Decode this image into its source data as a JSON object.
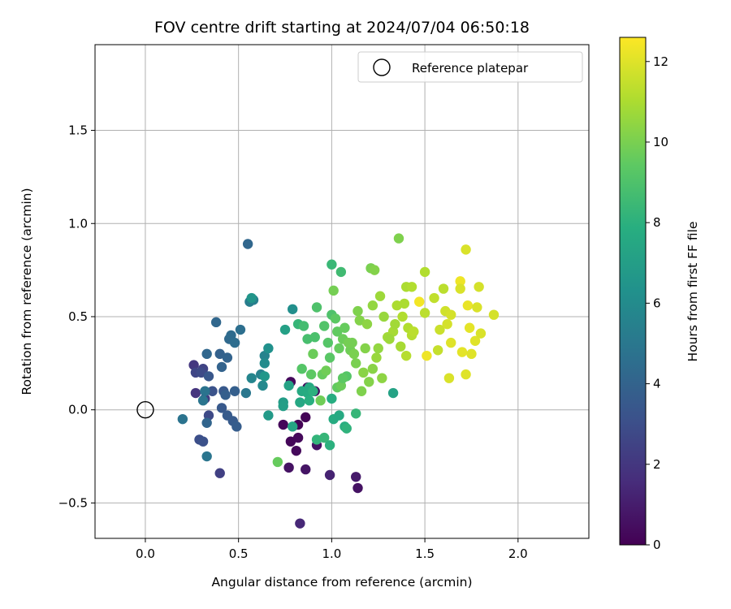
{
  "chart_data": {
    "type": "scatter",
    "title": "FOV centre drift starting at 2024/07/04 06:50:18",
    "xlabel": "Angular distance from reference (arcmin)",
    "ylabel": "Rotation from reference (arcmin)",
    "xlim": [
      -0.27,
      2.38
    ],
    "ylim": [
      -0.69,
      1.96
    ],
    "xticks": [
      0.0,
      0.5,
      1.0,
      1.5,
      2.0
    ],
    "xtick_labels": [
      "0.0",
      "0.5",
      "1.0",
      "1.5",
      "2.0"
    ],
    "yticks": [
      -0.5,
      0.0,
      0.5,
      1.0,
      1.5
    ],
    "ytick_labels": [
      "−0.5",
      "0.0",
      "0.5",
      "1.0",
      "1.5"
    ],
    "grid": true,
    "legend": {
      "placement": "top-right",
      "entries": [
        "Reference platepar"
      ]
    },
    "reference_point": {
      "x": 0.0,
      "y": 0.0,
      "label": "Reference platepar"
    },
    "colorbar": {
      "label": "Hours from first FF file",
      "range": [
        0,
        12.6
      ],
      "ticks": [
        0,
        2,
        4,
        6,
        8,
        10,
        12
      ],
      "tick_labels": [
        "0",
        "2",
        "4",
        "6",
        "8",
        "10",
        "12"
      ],
      "colormap": "viridis"
    },
    "color_variable": "hours",
    "points": [
      {
        "x": 0.74,
        "y": -0.08,
        "c": 0.2
      },
      {
        "x": 0.78,
        "y": -0.17,
        "c": 0.2
      },
      {
        "x": 0.82,
        "y": -0.08,
        "c": 0.1
      },
      {
        "x": 0.86,
        "y": -0.04,
        "c": 0.1
      },
      {
        "x": 0.81,
        "y": -0.22,
        "c": 0.3
      },
      {
        "x": 0.82,
        "y": -0.15,
        "c": 0.3
      },
      {
        "x": 0.78,
        "y": 0.15,
        "c": 0.3
      },
      {
        "x": 0.87,
        "y": 0.12,
        "c": 0.4
      },
      {
        "x": 0.91,
        "y": 0.1,
        "c": 0.5
      },
      {
        "x": 0.92,
        "y": -0.19,
        "c": 0.6
      },
      {
        "x": 0.77,
        "y": -0.31,
        "c": 0.6
      },
      {
        "x": 0.86,
        "y": -0.32,
        "c": 0.7
      },
      {
        "x": 1.14,
        "y": -0.42,
        "c": 0.6
      },
      {
        "x": 1.13,
        "y": -0.36,
        "c": 0.9
      },
      {
        "x": 0.99,
        "y": -0.35,
        "c": 1.2
      },
      {
        "x": 0.83,
        "y": -0.61,
        "c": 1.4
      },
      {
        "x": 0.27,
        "y": 0.09,
        "c": 1.9
      },
      {
        "x": 0.26,
        "y": 0.24,
        "c": 2.0
      },
      {
        "x": 0.32,
        "y": 0.06,
        "c": 2.2
      },
      {
        "x": 0.4,
        "y": -0.34,
        "c": 2.4
      },
      {
        "x": 0.31,
        "y": 0.22,
        "c": 2.5
      },
      {
        "x": 0.27,
        "y": 0.2,
        "c": 2.6
      },
      {
        "x": 0.3,
        "y": 0.2,
        "c": 2.8
      },
      {
        "x": 0.34,
        "y": -0.03,
        "c": 2.8
      },
      {
        "x": 0.29,
        "y": -0.16,
        "c": 3.0
      },
      {
        "x": 0.31,
        "y": -0.17,
        "c": 3.1
      },
      {
        "x": 0.36,
        "y": 0.1,
        "c": 3.2
      },
      {
        "x": 0.34,
        "y": 0.18,
        "c": 3.4
      },
      {
        "x": 0.42,
        "y": 0.1,
        "c": 3.5
      },
      {
        "x": 0.41,
        "y": 0.01,
        "c": 3.5
      },
      {
        "x": 0.44,
        "y": -0.03,
        "c": 3.6
      },
      {
        "x": 0.47,
        "y": -0.06,
        "c": 3.6
      },
      {
        "x": 0.49,
        "y": -0.09,
        "c": 3.7
      },
      {
        "x": 0.48,
        "y": 0.1,
        "c": 3.8
      },
      {
        "x": 0.43,
        "y": 0.08,
        "c": 3.8
      },
      {
        "x": 0.4,
        "y": 0.3,
        "c": 3.9
      },
      {
        "x": 0.44,
        "y": 0.28,
        "c": 4.0
      },
      {
        "x": 0.41,
        "y": 0.23,
        "c": 4.0
      },
      {
        "x": 0.33,
        "y": -0.07,
        "c": 4.1
      },
      {
        "x": 0.33,
        "y": 0.3,
        "c": 4.2
      },
      {
        "x": 0.38,
        "y": 0.47,
        "c": 4.2
      },
      {
        "x": 0.45,
        "y": 0.38,
        "c": 4.3
      },
      {
        "x": 0.46,
        "y": 0.4,
        "c": 4.4
      },
      {
        "x": 0.48,
        "y": 0.36,
        "c": 4.5
      },
      {
        "x": 0.51,
        "y": 0.43,
        "c": 4.6
      },
      {
        "x": 0.55,
        "y": 0.89,
        "c": 4.2
      },
      {
        "x": 0.2,
        "y": -0.05,
        "c": 4.8
      },
      {
        "x": 0.33,
        "y": -0.25,
        "c": 4.9
      },
      {
        "x": 0.32,
        "y": 0.1,
        "c": 4.8
      },
      {
        "x": 0.31,
        "y": 0.05,
        "c": 4.9
      },
      {
        "x": 0.54,
        "y": 0.09,
        "c": 5.0
      },
      {
        "x": 0.56,
        "y": 0.58,
        "c": 5.3
      },
      {
        "x": 0.58,
        "y": 0.59,
        "c": 5.4
      },
      {
        "x": 0.62,
        "y": 0.19,
        "c": 5.5
      },
      {
        "x": 0.64,
        "y": 0.29,
        "c": 5.6
      },
      {
        "x": 0.57,
        "y": 0.17,
        "c": 5.7
      },
      {
        "x": 0.63,
        "y": 0.13,
        "c": 5.9
      },
      {
        "x": 0.64,
        "y": 0.25,
        "c": 6.0
      },
      {
        "x": 0.66,
        "y": 0.33,
        "c": 6.3
      },
      {
        "x": 0.57,
        "y": 0.6,
        "c": 6.5
      },
      {
        "x": 0.79,
        "y": 0.54,
        "c": 6.2
      },
      {
        "x": 0.64,
        "y": 0.18,
        "c": 6.6
      },
      {
        "x": 0.66,
        "y": -0.03,
        "c": 6.8
      },
      {
        "x": 0.74,
        "y": 0.04,
        "c": 6.9
      },
      {
        "x": 0.74,
        "y": 0.02,
        "c": 7.0
      },
      {
        "x": 0.75,
        "y": 0.43,
        "c": 7.1
      },
      {
        "x": 0.77,
        "y": 0.13,
        "c": 7.2
      },
      {
        "x": 0.79,
        "y": -0.09,
        "c": 7.4
      },
      {
        "x": 0.83,
        "y": 0.04,
        "c": 7.5
      },
      {
        "x": 0.84,
        "y": 0.1,
        "c": 7.6
      },
      {
        "x": 0.87,
        "y": 0.09,
        "c": 7.7
      },
      {
        "x": 0.88,
        "y": 0.12,
        "c": 7.6
      },
      {
        "x": 0.88,
        "y": 0.05,
        "c": 7.9
      },
      {
        "x": 0.9,
        "y": 0.1,
        "c": 8.0
      },
      {
        "x": 0.92,
        "y": -0.16,
        "c": 8.2
      },
      {
        "x": 0.96,
        "y": -0.15,
        "c": 8.3
      },
      {
        "x": 0.99,
        "y": -0.19,
        "c": 8.0
      },
      {
        "x": 1.0,
        "y": 0.06,
        "c": 7.8
      },
      {
        "x": 1.01,
        "y": -0.05,
        "c": 7.7
      },
      {
        "x": 1.04,
        "y": -0.03,
        "c": 7.6
      },
      {
        "x": 1.07,
        "y": -0.09,
        "c": 7.9
      },
      {
        "x": 1.08,
        "y": -0.1,
        "c": 8.1
      },
      {
        "x": 1.13,
        "y": -0.02,
        "c": 8.3
      },
      {
        "x": 1.33,
        "y": 0.09,
        "c": 7.2
      },
      {
        "x": 1.0,
        "y": 0.78,
        "c": 8.4
      },
      {
        "x": 1.05,
        "y": 0.74,
        "c": 8.6
      },
      {
        "x": 0.82,
        "y": 0.46,
        "c": 8.3
      },
      {
        "x": 0.85,
        "y": 0.45,
        "c": 8.7
      },
      {
        "x": 0.87,
        "y": 0.38,
        "c": 8.8
      },
      {
        "x": 0.91,
        "y": 0.39,
        "c": 8.9
      },
      {
        "x": 0.92,
        "y": 0.55,
        "c": 9.0
      },
      {
        "x": 0.96,
        "y": 0.45,
        "c": 9.1
      },
      {
        "x": 0.98,
        "y": 0.36,
        "c": 9.2
      },
      {
        "x": 0.99,
        "y": 0.28,
        "c": 9.3
      },
      {
        "x": 1.0,
        "y": 0.51,
        "c": 9.0
      },
      {
        "x": 1.02,
        "y": 0.49,
        "c": 9.4
      },
      {
        "x": 1.03,
        "y": 0.42,
        "c": 9.5
      },
      {
        "x": 1.04,
        "y": 0.33,
        "c": 9.6
      },
      {
        "x": 1.06,
        "y": 0.38,
        "c": 9.7
      },
      {
        "x": 1.08,
        "y": 0.18,
        "c": 9.2
      },
      {
        "x": 1.1,
        "y": 0.32,
        "c": 9.8
      },
      {
        "x": 1.11,
        "y": 0.36,
        "c": 9.9
      },
      {
        "x": 1.13,
        "y": 0.25,
        "c": 10.0
      },
      {
        "x": 1.14,
        "y": 0.53,
        "c": 10.1
      },
      {
        "x": 1.15,
        "y": 0.48,
        "c": 10.2
      },
      {
        "x": 1.17,
        "y": 0.2,
        "c": 10.3
      },
      {
        "x": 1.19,
        "y": 0.46,
        "c": 10.4
      },
      {
        "x": 1.21,
        "y": 0.76,
        "c": 10.0
      },
      {
        "x": 1.23,
        "y": 0.75,
        "c": 10.2
      },
      {
        "x": 1.22,
        "y": 0.56,
        "c": 10.5
      },
      {
        "x": 1.24,
        "y": 0.28,
        "c": 10.6
      },
      {
        "x": 1.26,
        "y": 0.61,
        "c": 10.7
      },
      {
        "x": 1.27,
        "y": 0.17,
        "c": 10.4
      },
      {
        "x": 1.3,
        "y": 0.39,
        "c": 10.8
      },
      {
        "x": 1.33,
        "y": 0.42,
        "c": 10.9
      },
      {
        "x": 1.35,
        "y": 0.56,
        "c": 11.0
      },
      {
        "x": 1.36,
        "y": 0.92,
        "c": 10.1
      },
      {
        "x": 1.38,
        "y": 0.5,
        "c": 11.1
      },
      {
        "x": 1.4,
        "y": 0.66,
        "c": 11.0
      },
      {
        "x": 1.4,
        "y": 0.29,
        "c": 11.2
      },
      {
        "x": 1.43,
        "y": 0.66,
        "c": 11.1
      },
      {
        "x": 1.43,
        "y": 0.4,
        "c": 11.2
      },
      {
        "x": 1.47,
        "y": 0.58,
        "c": 12.4
      },
      {
        "x": 1.5,
        "y": 0.74,
        "c": 11.1
      },
      {
        "x": 1.5,
        "y": 0.52,
        "c": 11.3
      },
      {
        "x": 1.51,
        "y": 0.29,
        "c": 12.3
      },
      {
        "x": 1.55,
        "y": 0.6,
        "c": 11.4
      },
      {
        "x": 1.57,
        "y": 0.32,
        "c": 11.5
      },
      {
        "x": 1.58,
        "y": 0.43,
        "c": 11.6
      },
      {
        "x": 1.6,
        "y": 0.65,
        "c": 11.3
      },
      {
        "x": 1.61,
        "y": 0.53,
        "c": 11.7
      },
      {
        "x": 1.62,
        "y": 0.46,
        "c": 11.8
      },
      {
        "x": 1.63,
        "y": 0.17,
        "c": 11.9
      },
      {
        "x": 1.64,
        "y": 0.36,
        "c": 12.0
      },
      {
        "x": 1.64,
        "y": 0.51,
        "c": 11.8
      },
      {
        "x": 1.69,
        "y": 0.69,
        "c": 12.3
      },
      {
        "x": 1.69,
        "y": 0.65,
        "c": 11.9
      },
      {
        "x": 1.7,
        "y": 0.31,
        "c": 12.1
      },
      {
        "x": 1.72,
        "y": 0.86,
        "c": 11.9
      },
      {
        "x": 1.72,
        "y": 0.19,
        "c": 12.0
      },
      {
        "x": 1.73,
        "y": 0.56,
        "c": 12.2
      },
      {
        "x": 1.74,
        "y": 0.44,
        "c": 12.1
      },
      {
        "x": 1.75,
        "y": 0.3,
        "c": 12.0
      },
      {
        "x": 1.77,
        "y": 0.37,
        "c": 12.0
      },
      {
        "x": 1.78,
        "y": 0.55,
        "c": 11.9
      },
      {
        "x": 1.79,
        "y": 0.66,
        "c": 11.8
      },
      {
        "x": 1.8,
        "y": 0.41,
        "c": 11.9
      },
      {
        "x": 1.87,
        "y": 0.51,
        "c": 11.8
      },
      {
        "x": 0.71,
        "y": -0.28,
        "c": 9.6
      },
      {
        "x": 0.84,
        "y": 0.22,
        "c": 9.2
      },
      {
        "x": 0.89,
        "y": 0.19,
        "c": 9.4
      },
      {
        "x": 0.95,
        "y": 0.19,
        "c": 9.6
      },
      {
        "x": 0.97,
        "y": 0.21,
        "c": 9.8
      },
      {
        "x": 1.03,
        "y": 0.12,
        "c": 9.5
      },
      {
        "x": 1.05,
        "y": 0.13,
        "c": 9.7
      },
      {
        "x": 1.06,
        "y": 0.17,
        "c": 9.4
      },
      {
        "x": 1.09,
        "y": 0.36,
        "c": 9.9
      },
      {
        "x": 1.12,
        "y": 0.3,
        "c": 10.0
      },
      {
        "x": 1.16,
        "y": 0.1,
        "c": 10.1
      },
      {
        "x": 1.18,
        "y": 0.33,
        "c": 10.2
      },
      {
        "x": 1.22,
        "y": 0.22,
        "c": 10.3
      },
      {
        "x": 1.25,
        "y": 0.33,
        "c": 10.5
      },
      {
        "x": 1.28,
        "y": 0.5,
        "c": 10.6
      },
      {
        "x": 1.31,
        "y": 0.38,
        "c": 10.7
      },
      {
        "x": 1.34,
        "y": 0.46,
        "c": 10.8
      },
      {
        "x": 1.37,
        "y": 0.34,
        "c": 10.9
      },
      {
        "x": 1.39,
        "y": 0.57,
        "c": 11.0
      },
      {
        "x": 1.41,
        "y": 0.44,
        "c": 11.1
      },
      {
        "x": 0.9,
        "y": 0.3,
        "c": 9.7
      },
      {
        "x": 0.94,
        "y": 0.05,
        "c": 9.8
      },
      {
        "x": 1.07,
        "y": 0.44,
        "c": 9.6
      },
      {
        "x": 1.01,
        "y": 0.64,
        "c": 9.9
      },
      {
        "x": 1.2,
        "y": 0.15,
        "c": 10.2
      },
      {
        "x": 1.44,
        "y": 0.42,
        "c": 11.3
      }
    ]
  },
  "colors": {
    "grid": "#b0b0b0",
    "axes": "#000000",
    "legend_border": "#cccccc"
  }
}
